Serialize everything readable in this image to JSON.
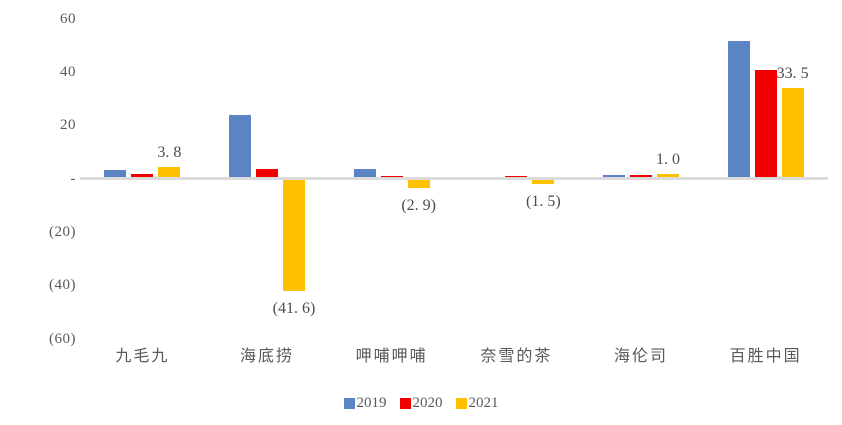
{
  "chart_data": {
    "type": "bar",
    "title": "",
    "xlabel": "",
    "ylabel": "",
    "categories": [
      "九毛九",
      "海底捞",
      "呷哺呷哺",
      "奈雪的茶",
      "海伦司",
      "百胜中国"
    ],
    "series": [
      {
        "name": "2019",
        "color": "#5B84C4",
        "values": [
          2.5,
          23.3,
          2.9,
          0,
          0.8,
          51.0
        ]
      },
      {
        "name": "2020",
        "color": "#F00000",
        "values": [
          1.1,
          3.1,
          0.2,
          0.2,
          0.7,
          40.1
        ]
      },
      {
        "name": "2021",
        "color": "#FFC000",
        "values": [
          3.8,
          -41.6,
          -2.9,
          -1.5,
          1.0,
          33.5
        ]
      }
    ],
    "data_labels": {
      "series": "2021",
      "texts": [
        "3. 8",
        "(41. 6)",
        "(2. 9)",
        "(1. 5)",
        "1. 0",
        "33. 5"
      ]
    },
    "ylim": [
      -60,
      60
    ],
    "yticks": [
      {
        "value": 60,
        "label": "60"
      },
      {
        "value": 40,
        "label": "40"
      },
      {
        "value": 20,
        "label": "20"
      },
      {
        "value": 0,
        "label": "-"
      },
      {
        "value": -20,
        "label": "(20)"
      },
      {
        "value": -40,
        "label": "(40)"
      },
      {
        "value": -60,
        "label": "(60)"
      }
    ],
    "grid": false,
    "legend": {
      "position": "bottom",
      "entries": [
        "2019",
        "2020",
        "2021"
      ]
    }
  },
  "colors": {
    "background": "#FFFFFF",
    "axis_line": "#DBDBDB",
    "tick_text": "#595959",
    "label_text": "#4D4D4D",
    "series_2019": "#5B84C4",
    "series_2020": "#F00000",
    "series_2021": "#FFC000"
  }
}
